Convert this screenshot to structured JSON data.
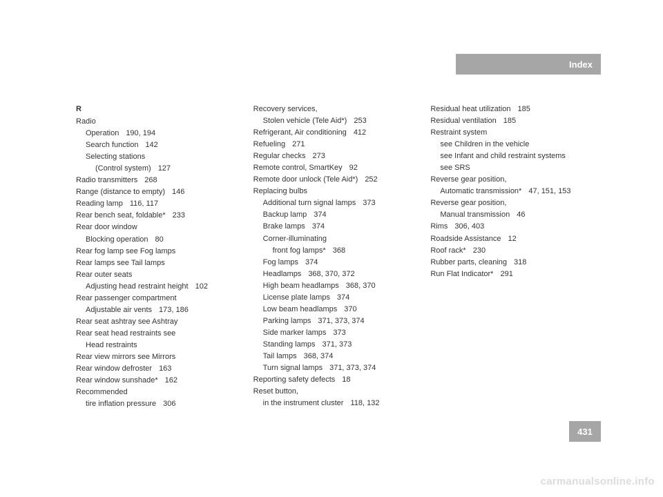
{
  "header": {
    "title": "Index"
  },
  "pageNumber": "431",
  "watermark": "carmanualsonline.info",
  "columns": [
    {
      "letter": "R",
      "entries": [
        {
          "text": "Radio",
          "pages": "",
          "lvl": 0
        },
        {
          "text": "Operation",
          "pages": "190, 194",
          "lvl": 1
        },
        {
          "text": "Search function",
          "pages": "142",
          "lvl": 1
        },
        {
          "text": "Selecting stations",
          "pages": "",
          "lvl": 1
        },
        {
          "text": "(Control system)",
          "pages": "127",
          "lvl": 2
        },
        {
          "text": "Radio transmitters",
          "pages": "268",
          "lvl": 0
        },
        {
          "text": "Range (distance to empty)",
          "pages": "146",
          "lvl": 0
        },
        {
          "text": "Reading lamp",
          "pages": "116, 117",
          "lvl": 0
        },
        {
          "text": "Rear bench seat, foldable*",
          "pages": "233",
          "lvl": 0
        },
        {
          "text": "Rear door window",
          "pages": "",
          "lvl": 0
        },
        {
          "text": "Blocking operation",
          "pages": "80",
          "lvl": 1
        },
        {
          "text": "Rear fog lamp see Fog lamps",
          "pages": "",
          "lvl": 0
        },
        {
          "text": "Rear lamps see Tail lamps",
          "pages": "",
          "lvl": 0
        },
        {
          "text": "Rear outer seats",
          "pages": "",
          "lvl": 0
        },
        {
          "text": "Adjusting head restraint height",
          "pages": "102",
          "lvl": 1
        },
        {
          "text": "Rear passenger compartment",
          "pages": "",
          "lvl": 0
        },
        {
          "text": "Adjustable air vents",
          "pages": "173, 186",
          "lvl": 1
        },
        {
          "text": "Rear seat ashtray see Ashtray",
          "pages": "",
          "lvl": 0
        },
        {
          "text": "Rear seat head restraints see",
          "pages": "",
          "lvl": 0
        },
        {
          "text": "Head restraints",
          "pages": "",
          "lvl": 1
        },
        {
          "text": "Rear view mirrors see Mirrors",
          "pages": "",
          "lvl": 0
        },
        {
          "text": "Rear window defroster",
          "pages": "163",
          "lvl": 0
        },
        {
          "text": "Rear window sunshade*",
          "pages": "162",
          "lvl": 0
        },
        {
          "text": "Recommended",
          "pages": "",
          "lvl": 0
        },
        {
          "text": "tire inflation pressure",
          "pages": "306",
          "lvl": 1
        }
      ]
    },
    {
      "letter": "",
      "entries": [
        {
          "text": "Recovery services,",
          "pages": "",
          "lvl": 0
        },
        {
          "text": "Stolen vehicle (Tele Aid*)",
          "pages": "253",
          "lvl": 1
        },
        {
          "text": "Refrigerant, Air conditioning",
          "pages": "412",
          "lvl": 0
        },
        {
          "text": "Refueling",
          "pages": "271",
          "lvl": 0
        },
        {
          "text": "Regular checks",
          "pages": "273",
          "lvl": 0
        },
        {
          "text": "Remote control, SmartKey",
          "pages": "92",
          "lvl": 0
        },
        {
          "text": "Remote door unlock (Tele Aid*)",
          "pages": "252",
          "lvl": 0
        },
        {
          "text": "Replacing bulbs",
          "pages": "",
          "lvl": 0
        },
        {
          "text": "Additional turn signal lamps",
          "pages": "373",
          "lvl": 1
        },
        {
          "text": "Backup lamp",
          "pages": "374",
          "lvl": 1
        },
        {
          "text": "Brake lamps",
          "pages": "374",
          "lvl": 1
        },
        {
          "text": "Corner-illuminating",
          "pages": "",
          "lvl": 1
        },
        {
          "text": "front fog lamps*",
          "pages": "368",
          "lvl": 2
        },
        {
          "text": "Fog lamps",
          "pages": "374",
          "lvl": 1
        },
        {
          "text": "Headlamps",
          "pages": "368, 370, 372",
          "lvl": 1
        },
        {
          "text": "High beam headlamps",
          "pages": "368, 370",
          "lvl": 1
        },
        {
          "text": "License plate lamps",
          "pages": "374",
          "lvl": 1
        },
        {
          "text": "Low beam headlamps",
          "pages": "370",
          "lvl": 1
        },
        {
          "text": "Parking lamps",
          "pages": "371, 373, 374",
          "lvl": 1
        },
        {
          "text": "Side marker lamps",
          "pages": "373",
          "lvl": 1
        },
        {
          "text": "Standing lamps",
          "pages": "371, 373",
          "lvl": 1
        },
        {
          "text": "Tail lamps",
          "pages": "368, 374",
          "lvl": 1
        },
        {
          "text": "Turn signal lamps",
          "pages": "371, 373, 374",
          "lvl": 1
        },
        {
          "text": "Reporting safety defects",
          "pages": "18",
          "lvl": 0
        },
        {
          "text": "Reset button,",
          "pages": "",
          "lvl": 0
        },
        {
          "text": "in the instrument cluster",
          "pages": "118, 132",
          "lvl": 1
        }
      ]
    },
    {
      "letter": "",
      "entries": [
        {
          "text": "Residual heat utilization",
          "pages": "185",
          "lvl": 0
        },
        {
          "text": "Residual ventilation",
          "pages": "185",
          "lvl": 0
        },
        {
          "text": "Restraint system",
          "pages": "",
          "lvl": 0
        },
        {
          "text": "see Children in the vehicle",
          "pages": "",
          "lvl": 1
        },
        {
          "text": "see Infant and child restraint systems",
          "pages": "",
          "lvl": 1
        },
        {
          "text": "see SRS",
          "pages": "",
          "lvl": 1
        },
        {
          "text": "Reverse gear position,",
          "pages": "",
          "lvl": 0
        },
        {
          "text": "Automatic transmission*",
          "pages": "47, 151, 153",
          "lvl": 1
        },
        {
          "text": "Reverse gear position,",
          "pages": "",
          "lvl": 0
        },
        {
          "text": "Manual transmission",
          "pages": "46",
          "lvl": 1
        },
        {
          "text": "Rims",
          "pages": "306, 403",
          "lvl": 0
        },
        {
          "text": "Roadside Assistance",
          "pages": "12",
          "lvl": 0
        },
        {
          "text": "Roof rack*",
          "pages": "230",
          "lvl": 0
        },
        {
          "text": "Rubber parts, cleaning",
          "pages": "318",
          "lvl": 0
        },
        {
          "text": "Run Flat Indicator*",
          "pages": "291",
          "lvl": 0
        }
      ]
    }
  ]
}
